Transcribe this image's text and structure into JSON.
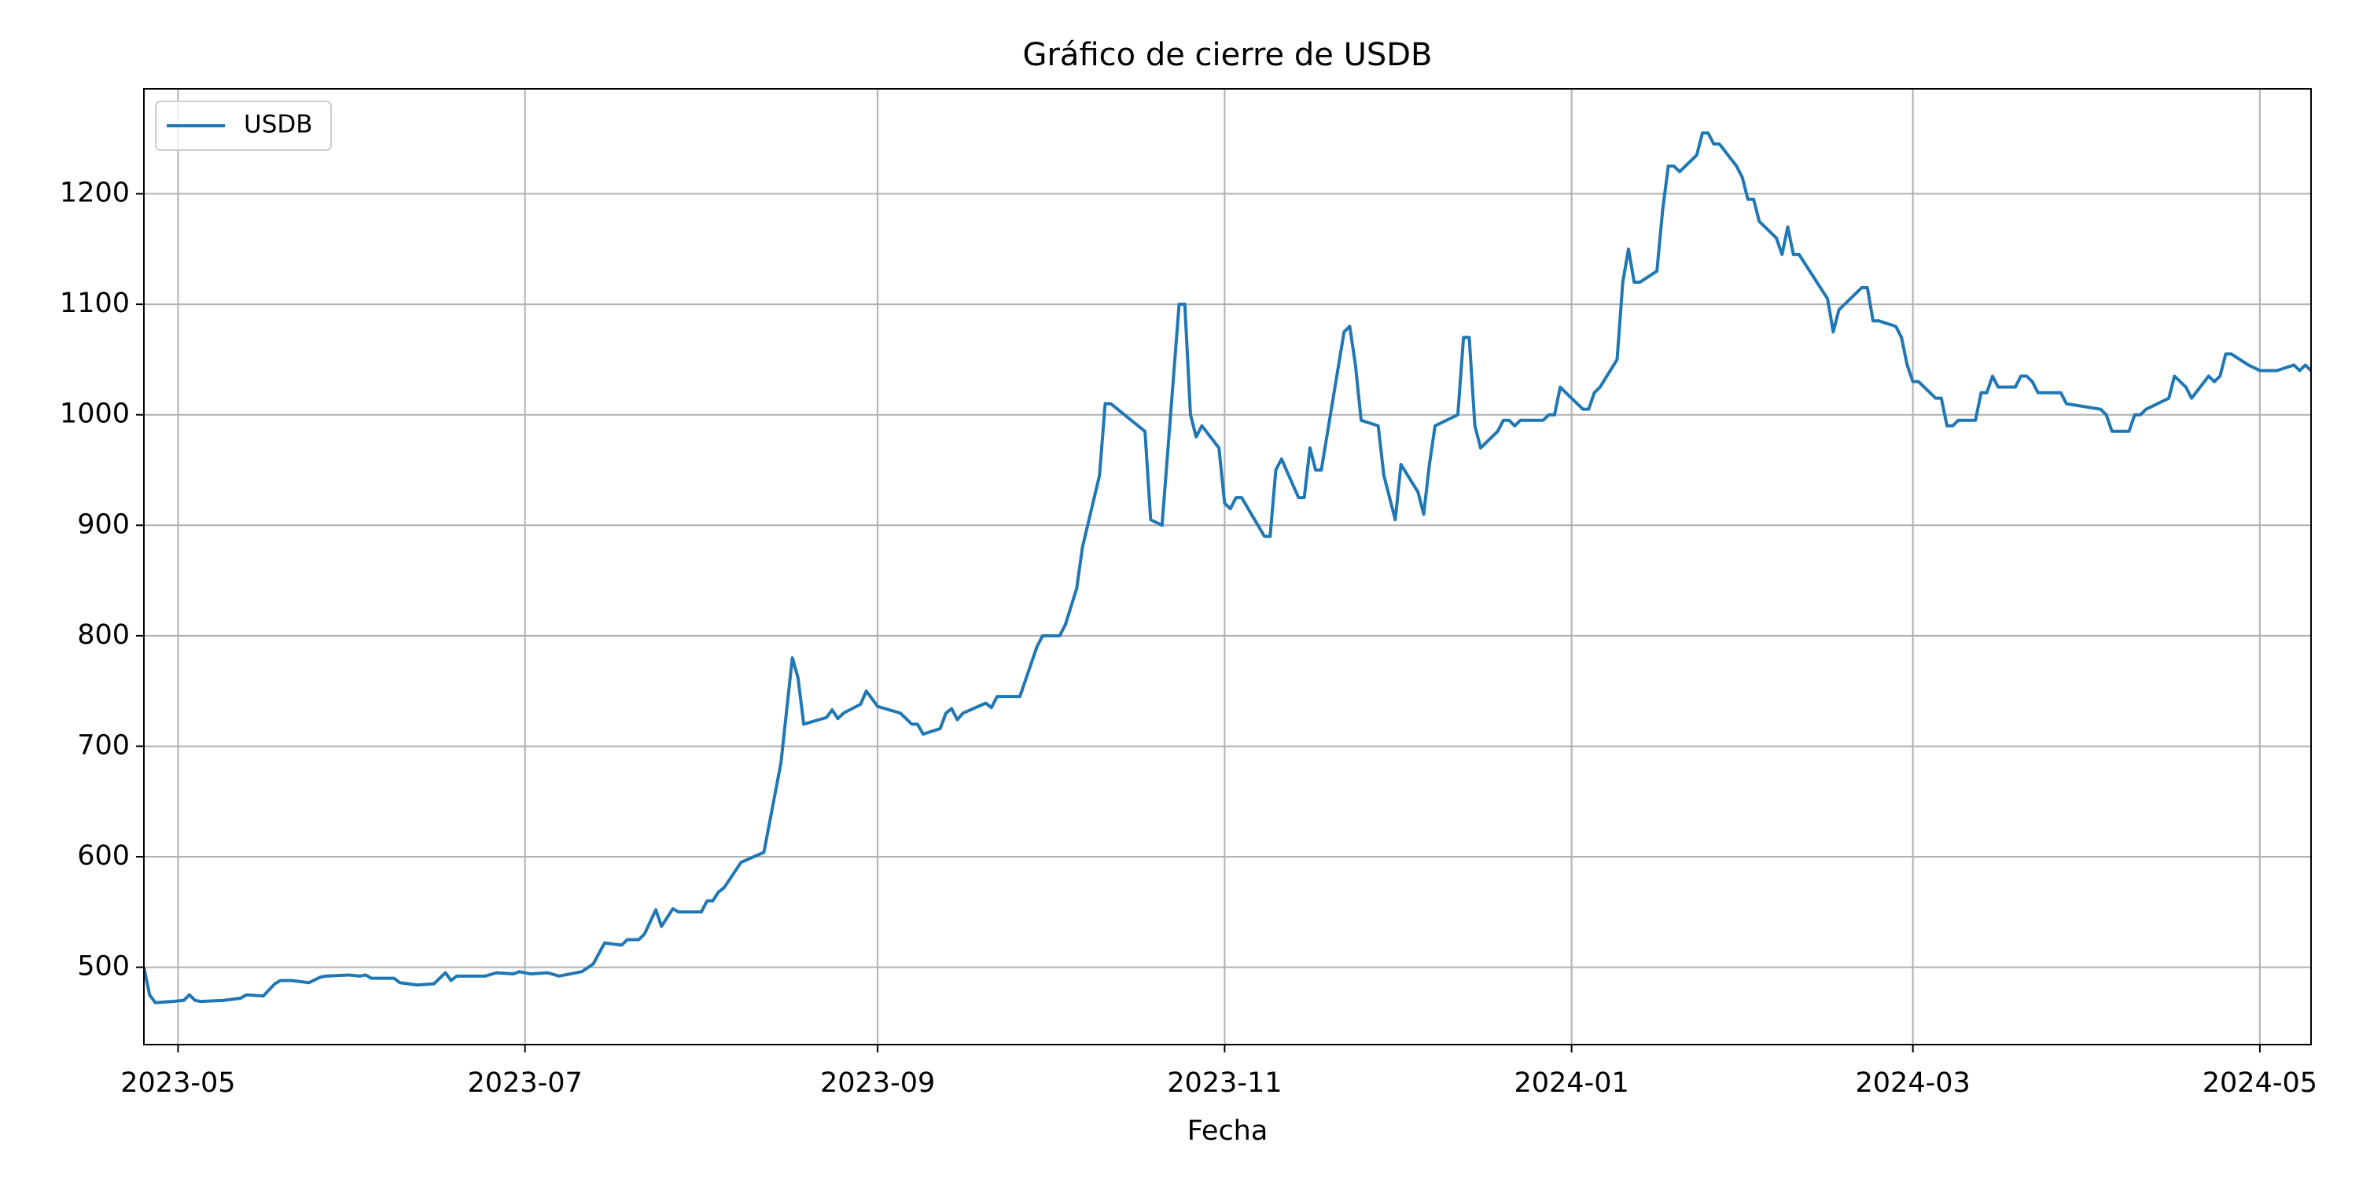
{
  "chart_data": {
    "type": "line",
    "title": "Gráfico de cierre de USDB",
    "xlabel": "Fecha",
    "x": [
      "2023-04-25",
      "2023-04-26",
      "2023-04-27",
      "2023-04-30",
      "2023-05-02",
      "2023-05-03",
      "2023-05-04",
      "2023-05-05",
      "2023-05-09",
      "2023-05-12",
      "2023-05-13",
      "2023-05-16",
      "2023-05-18",
      "2023-05-19",
      "2023-05-21",
      "2023-05-24",
      "2023-05-26",
      "2023-05-27",
      "2023-05-31",
      "2023-06-02",
      "2023-06-03",
      "2023-06-04",
      "2023-06-08",
      "2023-06-09",
      "2023-06-12",
      "2023-06-15",
      "2023-06-17",
      "2023-06-18",
      "2023-06-19",
      "2023-06-24",
      "2023-06-26",
      "2023-06-29",
      "2023-06-30",
      "2023-07-02",
      "2023-07-05",
      "2023-07-07",
      "2023-07-11",
      "2023-07-13",
      "2023-07-15",
      "2023-07-18",
      "2023-07-19",
      "2023-07-21",
      "2023-07-22",
      "2023-07-24",
      "2023-07-25",
      "2023-07-27",
      "2023-07-28",
      "2023-08-01",
      "2023-08-02",
      "2023-08-03",
      "2023-08-04",
      "2023-08-05",
      "2023-08-08",
      "2023-08-12",
      "2023-08-15",
      "2023-08-17",
      "2023-08-18",
      "2023-08-19",
      "2023-08-23",
      "2023-08-24",
      "2023-08-25",
      "2023-08-26",
      "2023-08-29",
      "2023-08-30",
      "2023-09-01",
      "2023-09-05",
      "2023-09-07",
      "2023-09-08",
      "2023-09-09",
      "2023-09-12",
      "2023-09-13",
      "2023-09-14",
      "2023-09-15",
      "2023-09-16",
      "2023-09-20",
      "2023-09-21",
      "2023-09-22",
      "2023-09-26",
      "2023-09-28",
      "2023-09-29",
      "2023-09-30",
      "2023-10-03",
      "2023-10-04",
      "2023-10-06",
      "2023-10-07",
      "2023-10-10",
      "2023-10-11",
      "2023-10-12",
      "2023-10-18",
      "2023-10-19",
      "2023-10-21",
      "2023-10-24",
      "2023-10-25",
      "2023-10-26",
      "2023-10-27",
      "2023-10-28",
      "2023-10-31",
      "2023-11-01",
      "2023-11-02",
      "2023-11-03",
      "2023-11-04",
      "2023-11-08",
      "2023-11-09",
      "2023-11-10",
      "2023-11-11",
      "2023-11-14",
      "2023-11-15",
      "2023-11-16",
      "2023-11-17",
      "2023-11-18",
      "2023-11-22",
      "2023-11-23",
      "2023-11-24",
      "2023-11-25",
      "2023-11-28",
      "2023-11-29",
      "2023-12-01",
      "2023-12-02",
      "2023-12-05",
      "2023-12-06",
      "2023-12-07",
      "2023-12-08",
      "2023-12-12",
      "2023-12-13",
      "2023-12-14",
      "2023-12-15",
      "2023-12-16",
      "2023-12-19",
      "2023-12-20",
      "2023-12-21",
      "2023-12-22",
      "2023-12-23",
      "2023-12-27",
      "2023-12-28",
      "2023-12-29",
      "2023-12-30",
      "2024-01-03",
      "2024-01-04",
      "2024-01-05",
      "2024-01-06",
      "2024-01-09",
      "2024-01-10",
      "2024-01-11",
      "2024-01-12",
      "2024-01-13",
      "2024-01-16",
      "2024-01-17",
      "2024-01-18",
      "2024-01-19",
      "2024-01-20",
      "2024-01-23",
      "2024-01-24",
      "2024-01-25",
      "2024-01-26",
      "2024-01-27",
      "2024-01-30",
      "2024-01-31",
      "2024-02-01",
      "2024-02-02",
      "2024-02-03",
      "2024-02-06",
      "2024-02-07",
      "2024-02-08",
      "2024-02-09",
      "2024-02-10",
      "2024-02-15",
      "2024-02-16",
      "2024-02-17",
      "2024-02-21",
      "2024-02-22",
      "2024-02-23",
      "2024-02-24",
      "2024-02-27",
      "2024-02-28",
      "2024-02-29",
      "2024-03-01",
      "2024-03-02",
      "2024-03-05",
      "2024-03-06",
      "2024-03-07",
      "2024-03-08",
      "2024-03-09",
      "2024-03-12",
      "2024-03-13",
      "2024-03-14",
      "2024-03-15",
      "2024-03-16",
      "2024-03-19",
      "2024-03-20",
      "2024-03-21",
      "2024-03-22",
      "2024-03-23",
      "2024-03-27",
      "2024-03-28",
      "2024-04-03",
      "2024-04-04",
      "2024-04-05",
      "2024-04-08",
      "2024-04-09",
      "2024-04-10",
      "2024-04-11",
      "2024-04-15",
      "2024-04-16",
      "2024-04-18",
      "2024-04-19",
      "2024-04-22",
      "2024-04-23",
      "2024-04-24",
      "2024-04-25",
      "2024-04-26",
      "2024-04-29",
      "2024-05-01",
      "2024-05-04",
      "2024-05-07",
      "2024-05-08",
      "2024-05-09",
      "2024-05-10"
    ],
    "series": [
      {
        "name": "USDB",
        "color": "#1f77b4",
        "values": [
          500,
          475,
          468,
          469,
          470,
          475,
          470,
          469,
          470,
          472,
          475,
          474,
          485,
          488,
          488,
          486,
          491,
          492,
          493,
          492,
          493,
          490,
          490,
          486,
          484,
          485,
          495,
          488,
          492,
          492,
          495,
          494,
          496,
          494,
          495,
          492,
          496,
          503,
          522,
          520,
          525,
          525,
          530,
          552,
          537,
          553,
          550,
          550,
          560,
          560,
          568,
          572,
          595,
          604,
          685,
          780,
          762,
          720,
          726,
          733,
          725,
          730,
          738,
          750,
          736,
          730,
          720,
          720,
          711,
          716,
          730,
          734,
          724,
          730,
          739,
          735,
          745,
          745,
          775,
          790,
          800,
          800,
          810,
          843,
          880,
          945,
          1010,
          1010,
          985,
          905,
          900,
          1100,
          1100,
          1000,
          980,
          990,
          970,
          920,
          915,
          925,
          925,
          890,
          890,
          950,
          960,
          925,
          925,
          970,
          950,
          950,
          1075,
          1080,
          1045,
          995,
          990,
          945,
          905,
          955,
          930,
          910,
          955,
          990,
          1000,
          1070,
          1070,
          990,
          970,
          985,
          995,
          995,
          990,
          995,
          995,
          1000,
          1000,
          1025,
          1005,
          1005,
          1020,
          1025,
          1050,
          1120,
          1150,
          1120,
          1120,
          1130,
          1185,
          1225,
          1225,
          1220,
          1235,
          1255,
          1255,
          1245,
          1245,
          1225,
          1215,
          1195,
          1195,
          1175,
          1160,
          1145,
          1170,
          1145,
          1145,
          1105,
          1075,
          1095,
          1115,
          1115,
          1085,
          1085,
          1080,
          1070,
          1045,
          1030,
          1030,
          1015,
          1015,
          990,
          990,
          995,
          995,
          1020,
          1020,
          1035,
          1025,
          1025,
          1035,
          1035,
          1030,
          1020,
          1020,
          1010,
          1005,
          1000,
          985,
          985,
          1000,
          1000,
          1005,
          1015,
          1035,
          1025,
          1015,
          1035,
          1030,
          1035,
          1055,
          1055,
          1045,
          1040,
          1040,
          1045,
          1040,
          1045,
          1040
        ]
      }
    ],
    "xlim": [
      "2023-04-25",
      "2024-05-10"
    ],
    "xticks": [
      {
        "value": "2023-05-01",
        "label": "2023-05"
      },
      {
        "value": "2023-07-01",
        "label": "2023-07"
      },
      {
        "value": "2023-09-01",
        "label": "2023-09"
      },
      {
        "value": "2023-11-01",
        "label": "2023-11"
      },
      {
        "value": "2024-01-01",
        "label": "2024-01"
      },
      {
        "value": "2024-03-01",
        "label": "2024-03"
      },
      {
        "value": "2024-05-01",
        "label": "2024-05"
      }
    ],
    "ylim": [
      430,
      1295
    ],
    "yticks": [
      500,
      600,
      700,
      800,
      900,
      1000,
      1100,
      1200
    ],
    "grid": true,
    "legend": "upper left"
  }
}
